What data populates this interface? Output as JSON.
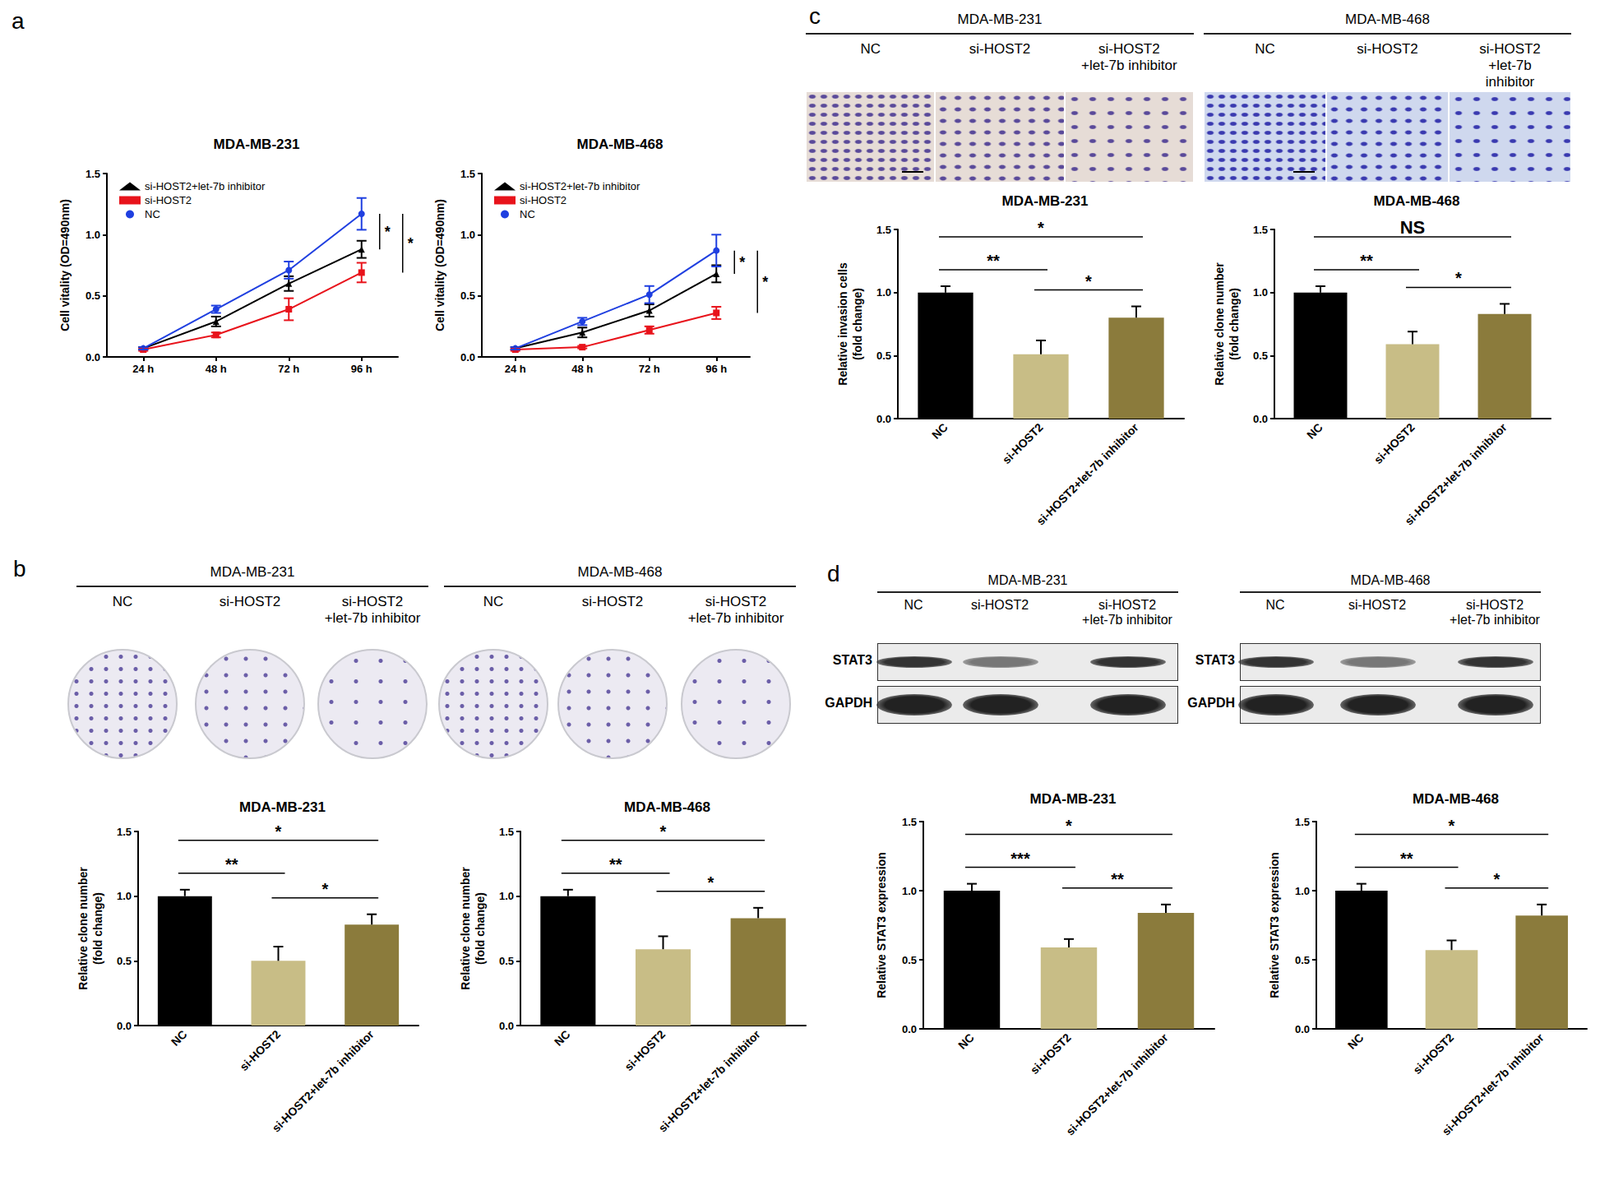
{
  "panel_labels": [
    "a",
    "b",
    "c",
    "d"
  ],
  "image_panels": {
    "b": [
      {
        "title": "MDA-MB-231",
        "lanes": [
          "NC",
          "si-HOST2",
          "si-HOST2\n+let-7b inhibitor"
        ]
      },
      {
        "title": "MDA-MB-468",
        "lanes": [
          "NC",
          "si-HOST2",
          "si-HOST2\n+let-7b inhibitor"
        ]
      }
    ],
    "c": [
      {
        "title": "MDA-MB-231",
        "lanes": [
          "NC",
          "si-HOST2",
          "si-HOST2\n+let-7b inhibitor"
        ]
      },
      {
        "title": "MDA-MB-468",
        "lanes": [
          "NC",
          "si-HOST2",
          "si-HOST2\n+let-7b inhibitor"
        ]
      }
    ],
    "d": [
      {
        "title": "MDA-MB-231",
        "lanes": [
          "NC",
          "si-HOST2",
          "si-HOST2\n+let-7b inhibitor"
        ],
        "rows": [
          "STAT3",
          "GAPDH"
        ]
      },
      {
        "title": "MDA-MB-468",
        "lanes": [
          "NC",
          "si-HOST2",
          "si-HOST2\n+let-7b inhibitor"
        ],
        "rows": [
          "STAT3",
          "GAPDH"
        ]
      }
    ]
  },
  "chart_data": [
    {
      "type": "line",
      "title": "MDA-MB-231",
      "ylabel": "Cell vitality (OD=490nm)",
      "categories": [
        "24 h",
        "48 h",
        "72 h",
        "96 h"
      ],
      "series": [
        {
          "name": "si-HOST2+let-7b inhibitor",
          "color": "#000000",
          "marker": "triangle",
          "values": [
            0.07,
            0.29,
            0.6,
            0.88
          ],
          "errors": [
            0.01,
            0.04,
            0.06,
            0.07
          ]
        },
        {
          "name": "si-HOST2",
          "color": "#e8131b",
          "marker": "square",
          "values": [
            0.06,
            0.18,
            0.39,
            0.69
          ],
          "errors": [
            0.01,
            0.02,
            0.09,
            0.08
          ]
        },
        {
          "name": "NC",
          "color": "#1f3fe0",
          "marker": "circle",
          "values": [
            0.07,
            0.39,
            0.71,
            1.17
          ],
          "errors": [
            0.01,
            0.03,
            0.07,
            0.13
          ]
        }
      ],
      "ylim": [
        0,
        1.5
      ],
      "yticks": [
        {
          "value": 0,
          "label": "0.0"
        },
        {
          "value": 0.5,
          "label": "0.5"
        },
        {
          "value": 1,
          "label": "1.0"
        },
        {
          "value": 1.5,
          "label": "1.5"
        }
      ],
      "grid": false,
      "legend": "upper left",
      "annotations": [
        {
          "between": [
            "NC",
            "si-HOST2+let-7b inhibitor"
          ],
          "text": "*"
        },
        {
          "between": [
            "NC",
            "si-HOST2"
          ],
          "text": "*"
        }
      ]
    },
    {
      "type": "line",
      "title": "MDA-MB-468",
      "ylabel": "Cell vitality (OD=490nm)",
      "categories": [
        "24 h",
        "48 h",
        "72 h",
        "96 h"
      ],
      "series": [
        {
          "name": "si-HOST2+let-7b inhibitor",
          "color": "#000000",
          "marker": "triangle",
          "values": [
            0.07,
            0.2,
            0.38,
            0.68
          ],
          "errors": [
            0.01,
            0.04,
            0.05,
            0.07
          ]
        },
        {
          "name": "si-HOST2",
          "color": "#e8131b",
          "marker": "square",
          "values": [
            0.06,
            0.08,
            0.22,
            0.36
          ],
          "errors": [
            0.01,
            0.01,
            0.03,
            0.05
          ]
        },
        {
          "name": "NC",
          "color": "#1f3fe0",
          "marker": "circle",
          "values": [
            0.07,
            0.29,
            0.51,
            0.87
          ],
          "errors": [
            0.01,
            0.03,
            0.07,
            0.13
          ]
        }
      ],
      "ylim": [
        0,
        1.5
      ],
      "yticks": [
        {
          "value": 0,
          "label": "0.0"
        },
        {
          "value": 0.5,
          "label": "0.5"
        },
        {
          "value": 1,
          "label": "1.0"
        },
        {
          "value": 1.5,
          "label": "1.5"
        }
      ],
      "grid": false,
      "legend": "upper left",
      "annotations": [
        {
          "between": [
            "NC",
            "si-HOST2+let-7b inhibitor"
          ],
          "text": "*"
        },
        {
          "between": [
            "NC",
            "si-HOST2"
          ],
          "text": "*"
        }
      ]
    },
    {
      "type": "bar",
      "title": "MDA-MB-231",
      "ylabel": "Relative clone number\n(fold change)",
      "categories": [
        "NC",
        "si-HOST2",
        "si-HOST2+let-7b inhibitor"
      ],
      "values": [
        1.0,
        0.5,
        0.78
      ],
      "errors": [
        0.05,
        0.11,
        0.08
      ],
      "colors": [
        "#000000",
        "#c8bd86",
        "#8b7b3c"
      ],
      "ylim": [
        0,
        1.5
      ],
      "yticks": [
        {
          "value": 0,
          "label": "0.0"
        },
        {
          "value": 0.5,
          "label": "0.5"
        },
        {
          "value": 1,
          "label": "1.0"
        },
        {
          "value": 1.5,
          "label": "1.5"
        }
      ],
      "grid": false,
      "annotations": [
        {
          "between": [
            "NC",
            "si-HOST2"
          ],
          "text": "**"
        },
        {
          "between": [
            "NC",
            "si-HOST2+let-7b inhibitor"
          ],
          "text": "*"
        },
        {
          "between": [
            "si-HOST2",
            "si-HOST2+let-7b inhibitor"
          ],
          "text": "*"
        }
      ]
    },
    {
      "type": "bar",
      "title": "MDA-MB-468",
      "ylabel": "Relative clone number\n(fold change)",
      "categories": [
        "NC",
        "si-HOST2",
        "si-HOST2+let-7b inhibitor"
      ],
      "values": [
        1.0,
        0.59,
        0.83
      ],
      "errors": [
        0.05,
        0.1,
        0.08
      ],
      "colors": [
        "#000000",
        "#c8bd86",
        "#8b7b3c"
      ],
      "ylim": [
        0,
        1.5
      ],
      "yticks": [
        {
          "value": 0,
          "label": "0.0"
        },
        {
          "value": 0.5,
          "label": "0.5"
        },
        {
          "value": 1,
          "label": "1.0"
        },
        {
          "value": 1.5,
          "label": "1.5"
        }
      ],
      "grid": false,
      "annotations": [
        {
          "between": [
            "NC",
            "si-HOST2"
          ],
          "text": "**"
        },
        {
          "between": [
            "NC",
            "si-HOST2+let-7b inhibitor"
          ],
          "text": "*"
        },
        {
          "between": [
            "si-HOST2",
            "si-HOST2+let-7b inhibitor"
          ],
          "text": "*"
        }
      ]
    },
    {
      "type": "bar",
      "title": "MDA-MB-231",
      "ylabel": "Relative invasion cells\n(fold change)",
      "categories": [
        "NC",
        "si-HOST2",
        "si-HOST2+let-7b inhibitor"
      ],
      "values": [
        1.0,
        0.51,
        0.8
      ],
      "errors": [
        0.05,
        0.11,
        0.09
      ],
      "colors": [
        "#000000",
        "#c8bd86",
        "#8b7b3c"
      ],
      "ylim": [
        0,
        1.5
      ],
      "yticks": [
        {
          "value": 0,
          "label": "0.0"
        },
        {
          "value": 0.5,
          "label": "0.5"
        },
        {
          "value": 1,
          "label": "1.0"
        },
        {
          "value": 1.5,
          "label": "1.5"
        }
      ],
      "grid": false,
      "annotations": [
        {
          "between": [
            "NC",
            "si-HOST2"
          ],
          "text": "**"
        },
        {
          "between": [
            "NC",
            "si-HOST2+let-7b inhibitor"
          ],
          "text": "*"
        },
        {
          "between": [
            "si-HOST2",
            "si-HOST2+let-7b inhibitor"
          ],
          "text": "*"
        }
      ]
    },
    {
      "type": "bar",
      "title": "MDA-MB-468",
      "ylabel": "Relative clone number\n(fold change)",
      "categories": [
        "NC",
        "si-HOST2",
        "si-HOST2+let-7b inhibitor"
      ],
      "values": [
        1.0,
        0.59,
        0.83
      ],
      "errors": [
        0.05,
        0.1,
        0.08
      ],
      "colors": [
        "#000000",
        "#c8bd86",
        "#8b7b3c"
      ],
      "ylim": [
        0,
        1.5
      ],
      "yticks": [
        {
          "value": 0,
          "label": "0.0"
        },
        {
          "value": 0.5,
          "label": "0.5"
        },
        {
          "value": 1,
          "label": "1.0"
        },
        {
          "value": 1.5,
          "label": "1.5"
        }
      ],
      "grid": false,
      "annotations": [
        {
          "between": [
            "NC",
            "si-HOST2"
          ],
          "text": "**"
        },
        {
          "between": [
            "NC",
            "si-HOST2+let-7b inhibitor"
          ],
          "text": "NS"
        },
        {
          "between": [
            "si-HOST2",
            "si-HOST2+let-7b inhibitor"
          ],
          "text": "*"
        }
      ]
    },
    {
      "type": "bar",
      "title": "MDA-MB-231",
      "ylabel": "Relative STAT3 expression",
      "categories": [
        "NC",
        "si-HOST2",
        "si-HOST2+let-7b inhibitor"
      ],
      "values": [
        1.0,
        0.59,
        0.84
      ],
      "errors": [
        0.05,
        0.06,
        0.06
      ],
      "colors": [
        "#000000",
        "#c8bd86",
        "#8b7b3c"
      ],
      "ylim": [
        0,
        1.5
      ],
      "yticks": [
        {
          "value": 0,
          "label": "0.0"
        },
        {
          "value": 0.5,
          "label": "0.5"
        },
        {
          "value": 1,
          "label": "1.0"
        },
        {
          "value": 1.5,
          "label": "1.5"
        }
      ],
      "grid": false,
      "annotations": [
        {
          "between": [
            "NC",
            "si-HOST2"
          ],
          "text": "***"
        },
        {
          "between": [
            "NC",
            "si-HOST2+let-7b inhibitor"
          ],
          "text": "*"
        },
        {
          "between": [
            "si-HOST2",
            "si-HOST2+let-7b inhibitor"
          ],
          "text": "**"
        }
      ]
    },
    {
      "type": "bar",
      "title": "MDA-MB-468",
      "ylabel": "Relative STAT3 expression",
      "categories": [
        "NC",
        "si-HOST2",
        "si-HOST2+let-7b inhibitor"
      ],
      "values": [
        1.0,
        0.57,
        0.82
      ],
      "errors": [
        0.05,
        0.07,
        0.08
      ],
      "colors": [
        "#000000",
        "#c8bd86",
        "#8b7b3c"
      ],
      "ylim": [
        0,
        1.5
      ],
      "yticks": [
        {
          "value": 0,
          "label": "0.0"
        },
        {
          "value": 0.5,
          "label": "0.5"
        },
        {
          "value": 1,
          "label": "1.0"
        },
        {
          "value": 1.5,
          "label": "1.5"
        }
      ],
      "grid": false,
      "annotations": [
        {
          "between": [
            "NC",
            "si-HOST2"
          ],
          "text": "**"
        },
        {
          "between": [
            "NC",
            "si-HOST2+let-7b inhibitor"
          ],
          "text": "*"
        },
        {
          "between": [
            "si-HOST2",
            "si-HOST2+let-7b inhibitor"
          ],
          "text": "*"
        }
      ]
    }
  ]
}
